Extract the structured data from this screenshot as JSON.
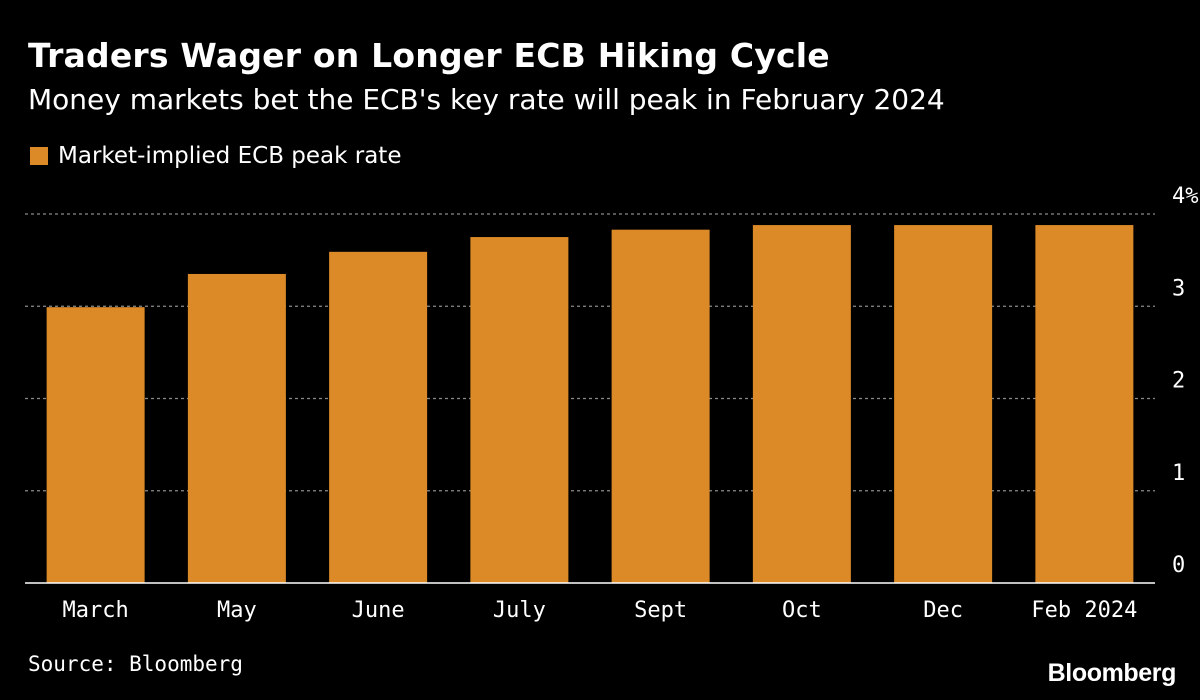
{
  "header": {
    "title": "Traders Wager on Longer ECB Hiking Cycle",
    "subtitle": "Money markets bet the ECB's key rate will peak in February 2024"
  },
  "legend": {
    "label": "Market-implied ECB peak rate"
  },
  "footer": {
    "source": "Source: Bloomberg",
    "brand": "Bloomberg"
  },
  "colors": {
    "background": "#000000",
    "bar": "#dc8a27",
    "grid": "#8a8a8a",
    "text": "#ffffff"
  },
  "chart_data": {
    "type": "bar",
    "title": "Traders Wager on Longer ECB Hiking Cycle",
    "subtitle": "Money markets bet the ECB's key rate will peak in February 2024",
    "categories": [
      "March",
      "May",
      "June",
      "July",
      "Sept",
      "Oct",
      "Dec",
      "Feb 2024"
    ],
    "series": [
      {
        "name": "Market-implied ECB peak rate",
        "values": [
          2.99,
          3.35,
          3.59,
          3.75,
          3.83,
          3.88,
          3.88,
          3.88
        ]
      }
    ],
    "yticks": [
      {
        "value": 0,
        "label": "0"
      },
      {
        "value": 1,
        "label": "1"
      },
      {
        "value": 2,
        "label": "2"
      },
      {
        "value": 3,
        "label": "3"
      },
      {
        "value": 4,
        "label": "4%"
      }
    ],
    "ylim": [
      0,
      4
    ],
    "xlabel": "",
    "ylabel": "",
    "grid": true,
    "y_axis_side": "right",
    "legend_position": "top-left"
  }
}
